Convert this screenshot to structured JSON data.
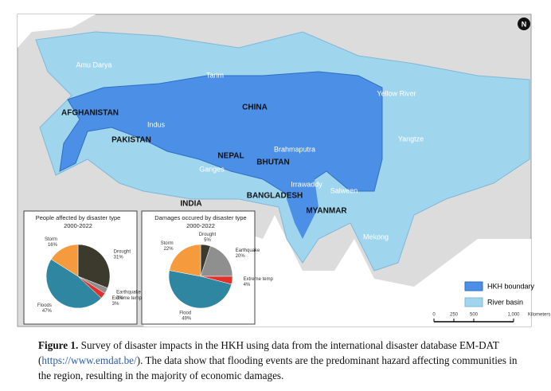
{
  "map": {
    "countries": [
      "AFGHANISTAN",
      "PAKISTAN",
      "INDIA",
      "NEPAL",
      "BHUTAN",
      "CHINA",
      "BANGLADESH",
      "MYANMAR"
    ],
    "basins": [
      "Amu Darya",
      "Tarim",
      "Yellow River",
      "Indus",
      "Yangtze",
      "Brahmaputra",
      "Ganges",
      "Irrawaddy",
      "Salween",
      "Mekong"
    ],
    "legend": [
      "HKH boundary",
      "River basin"
    ],
    "scale_ticks": [
      0,
      250,
      500,
      {
        "value": 1000,
        "label": "1,000"
      }
    ],
    "scale_unit": "Kilometers"
  },
  "chart_data": [
    {
      "type": "pie",
      "title": "People affected by disaster type",
      "subtitle": "2000-2022",
      "categories": [
        "Drought",
        "Earthquake",
        "Extreme temp",
        "Floods",
        "Storm"
      ],
      "values": [
        31,
        3,
        3,
        47,
        16
      ],
      "value_labels": [
        "31%",
        "3%",
        "3%",
        "47%",
        "16%"
      ],
      "colors": [
        "#3b3a2c",
        "#8f8f8f",
        "#e2312b",
        "#2f86a1",
        "#f59b3d"
      ]
    },
    {
      "type": "pie",
      "title": "Damages occured by disaster type",
      "subtitle": "2000-2022",
      "categories": [
        "Drought",
        "Earthquake",
        "Extreme temp",
        "Flood",
        "Storm"
      ],
      "values": [
        5,
        20,
        4,
        49,
        22
      ],
      "value_labels": [
        "5%",
        "20%",
        "4%",
        "49%",
        "22%"
      ],
      "colors": [
        "#3b3a2c",
        "#8f8f8f",
        "#e2312b",
        "#2f86a1",
        "#f59b3d"
      ]
    }
  ],
  "caption": {
    "label": "Figure 1.",
    "text": " Survey of disaster impacts in the HKH using data from the international disaster database EM-DAT (",
    "link": "https://www.emdat.be/",
    "text_end": "). The data show that flooding events are the predominant hazard affecting communities in the region, resulting in the majority of economic damages."
  }
}
